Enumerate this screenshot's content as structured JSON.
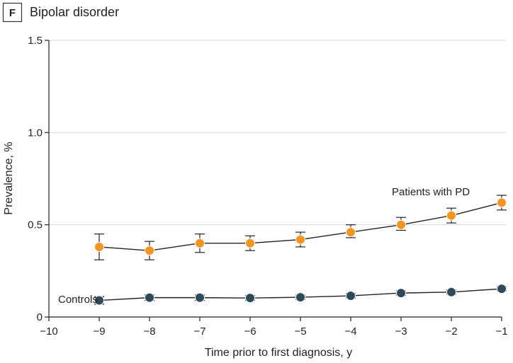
{
  "chart_data": {
    "type": "line",
    "panel_letter": "F",
    "title": "Bipolar disorder",
    "xlabel": "Time prior to first diagnosis, y",
    "ylabel": "Prevalence, %",
    "xlim": [
      -10,
      -1
    ],
    "ylim": [
      0,
      1.5
    ],
    "x_ticks": [
      -10,
      -9,
      -8,
      -7,
      -6,
      -5,
      -4,
      -3,
      -2,
      -1
    ],
    "x_tick_labels": [
      "−10",
      "−9",
      "−8",
      "−7",
      "−6",
      "−5",
      "−4",
      "−3",
      "−2",
      "−1"
    ],
    "y_ticks": [
      0,
      0.5,
      1.0,
      1.5
    ],
    "y_tick_labels": [
      "0",
      "0.5",
      "1.0",
      "1.5"
    ],
    "grid": "horizontal",
    "series": [
      {
        "name": "Patients with PD",
        "color": "#f7941d",
        "x": [
          -9,
          -8,
          -7,
          -6,
          -5,
          -4,
          -3,
          -2,
          -1
        ],
        "values": [
          0.38,
          0.36,
          0.4,
          0.4,
          0.42,
          0.46,
          0.5,
          0.55,
          0.62
        ],
        "ci_low": [
          0.31,
          0.31,
          0.35,
          0.36,
          0.38,
          0.43,
          0.47,
          0.51,
          0.58
        ],
        "ci_high": [
          0.45,
          0.41,
          0.45,
          0.44,
          0.46,
          0.5,
          0.54,
          0.59,
          0.66
        ]
      },
      {
        "name": "Controls",
        "color": "#2c4a5a",
        "x": [
          -9,
          -8,
          -7,
          -6,
          -5,
          -4,
          -3,
          -2,
          -1
        ],
        "values": [
          0.09,
          0.105,
          0.105,
          0.103,
          0.107,
          0.115,
          0.13,
          0.135,
          0.153
        ],
        "ci_low": [
          0.07,
          0.09,
          0.09,
          0.09,
          0.095,
          0.103,
          0.118,
          0.123,
          0.142
        ],
        "ci_high": [
          0.11,
          0.12,
          0.12,
          0.116,
          0.119,
          0.127,
          0.142,
          0.147,
          0.164
        ]
      }
    ]
  }
}
